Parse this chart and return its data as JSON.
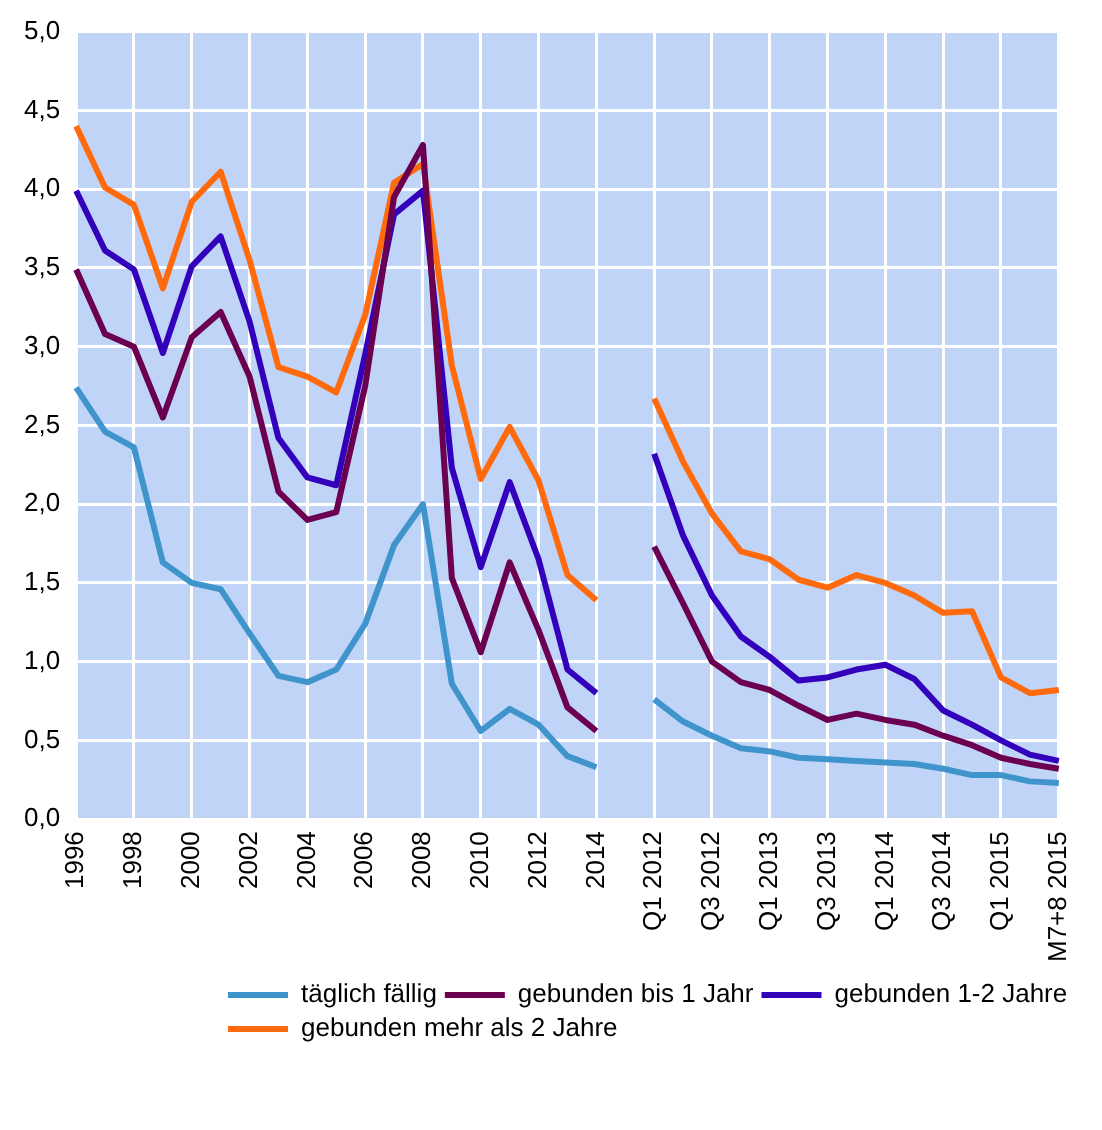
{
  "chart_data": {
    "type": "line",
    "categories": [
      "1996",
      null,
      "1998",
      null,
      "2000",
      null,
      "2002",
      null,
      "2004",
      null,
      "2006",
      null,
      "2008",
      null,
      "2010",
      null,
      "2012",
      null,
      "2014",
      null,
      "Q1 2012",
      null,
      "Q3 2012",
      null,
      "Q1 2013",
      null,
      "Q3 2013",
      null,
      "Q1 2014",
      null,
      "Q3 2014",
      null,
      "Q1 2015",
      null,
      "M7+8 2015"
    ],
    "series": [
      {
        "name": "täglich fällig",
        "color": "#3f94cc",
        "values": [
          2.74,
          2.46,
          2.36,
          1.63,
          1.5,
          1.46,
          1.18,
          0.91,
          0.87,
          0.95,
          1.24,
          1.74,
          2.0,
          0.86,
          0.56,
          0.7,
          0.6,
          0.4,
          0.33,
          null,
          0.76,
          0.62,
          0.53,
          0.45,
          0.43,
          0.39,
          0.38,
          0.37,
          0.36,
          0.35,
          0.32,
          0.28,
          0.28,
          0.24,
          0.23
        ]
      },
      {
        "name": "gebunden bis 1 Jahr",
        "color": "#6b0050",
        "values": [
          3.49,
          3.08,
          3.0,
          2.55,
          3.06,
          3.22,
          2.81,
          2.08,
          1.9,
          1.95,
          2.75,
          3.95,
          4.28,
          1.53,
          1.06,
          1.63,
          1.2,
          0.71,
          0.56,
          null,
          1.73,
          1.37,
          1.0,
          0.87,
          0.82,
          0.72,
          0.63,
          0.67,
          0.63,
          0.6,
          0.53,
          0.47,
          0.39,
          0.35,
          0.32
        ]
      },
      {
        "name": "gebunden 1-2 Jahre",
        "color": "#3300bb",
        "values": [
          3.99,
          3.61,
          3.49,
          2.96,
          3.51,
          3.7,
          3.16,
          2.42,
          2.17,
          2.12,
          2.95,
          3.84,
          3.99,
          2.23,
          1.6,
          2.14,
          1.65,
          0.95,
          0.8,
          null,
          2.32,
          1.8,
          1.42,
          1.16,
          1.03,
          0.88,
          0.9,
          0.95,
          0.98,
          0.89,
          0.69,
          0.6,
          0.5,
          0.41,
          0.37
        ]
      },
      {
        "name": "gebunden mehr als 2 Jahre",
        "color": "#ff6a0d",
        "values": [
          4.4,
          4.01,
          3.9,
          3.37,
          3.92,
          4.11,
          3.55,
          2.87,
          2.81,
          2.71,
          3.2,
          4.04,
          4.16,
          2.88,
          2.16,
          2.49,
          2.15,
          1.55,
          1.39,
          null,
          2.67,
          2.27,
          1.94,
          1.7,
          1.65,
          1.52,
          1.47,
          1.55,
          1.5,
          1.42,
          1.31,
          1.32,
          0.9,
          0.8,
          0.82
        ]
      }
    ],
    "ylim": [
      0,
      5
    ],
    "yticks": [
      {
        "value": 0,
        "label": "0,0"
      },
      {
        "value": 0.5,
        "label": "0,5"
      },
      {
        "value": 1,
        "label": "1,0"
      },
      {
        "value": 1.5,
        "label": "1,5"
      },
      {
        "value": 2,
        "label": "2,0"
      },
      {
        "value": 2.5,
        "label": "2,5"
      },
      {
        "value": 3,
        "label": "3,0"
      },
      {
        "value": 3.5,
        "label": "3,5"
      },
      {
        "value": 4,
        "label": "4,0"
      },
      {
        "value": 4.5,
        "label": "4,5"
      },
      {
        "value": 5,
        "label": "5,0"
      }
    ],
    "grid": true,
    "legend": "bottom",
    "marker": "none",
    "line_style": "solid"
  }
}
